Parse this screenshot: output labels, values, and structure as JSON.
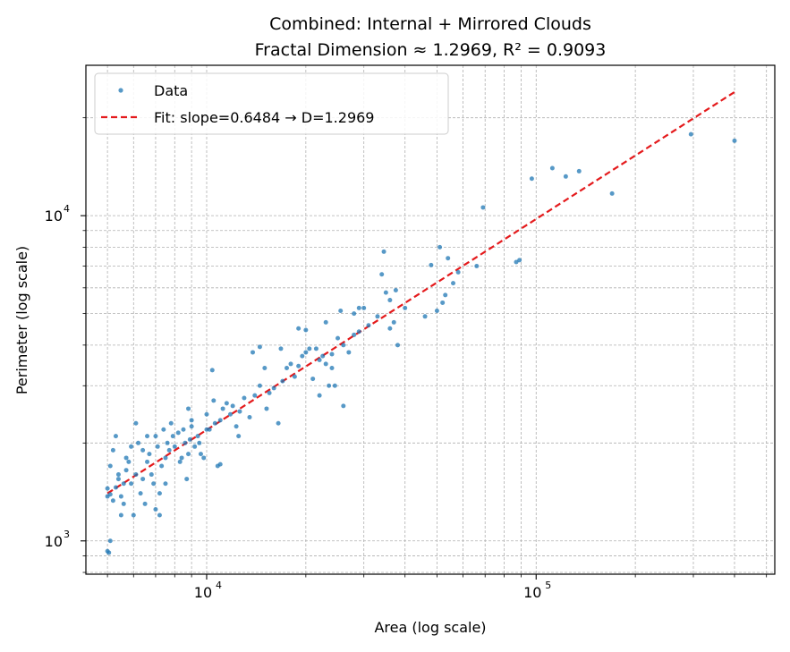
{
  "chart_data": {
    "type": "scatter",
    "title_line1": "Combined: Internal + Mirrored Clouds",
    "title_line2": "Fractal Dimension ≈ 1.2969, R² = 0.9093",
    "xlabel": "Area (log scale)",
    "ylabel": "Perimeter (log scale)",
    "xscale": "log",
    "yscale": "log",
    "xlim": [
      4300,
      530000
    ],
    "ylim": [
      790,
      29000
    ],
    "grid": "both (major and minor), dashed",
    "legend_position": "top-left",
    "x_ticks": [
      {
        "value": 10000,
        "label": "10",
        "exp": "4"
      },
      {
        "value": 100000,
        "label": "10",
        "exp": "5"
      }
    ],
    "y_ticks": [
      {
        "value": 1000,
        "label": "10",
        "exp": "3"
      },
      {
        "value": 10000,
        "label": "10",
        "exp": "4"
      }
    ],
    "series": [
      {
        "name": "Data",
        "kind": "scatter",
        "color": "#1f77b4",
        "points": [
          [
            5000,
            930
          ],
          [
            5050,
            920
          ],
          [
            5100,
            1000
          ],
          [
            5000,
            1370
          ],
          [
            5100,
            1390
          ],
          [
            5200,
            1330
          ],
          [
            5300,
            1460
          ],
          [
            5400,
            1550
          ],
          [
            5500,
            1370
          ],
          [
            5600,
            1300
          ],
          [
            5000,
            1450
          ],
          [
            5100,
            1700
          ],
          [
            5200,
            1900
          ],
          [
            5300,
            2100
          ],
          [
            5400,
            1600
          ],
          [
            5600,
            1500
          ],
          [
            5700,
            1650
          ],
          [
            5800,
            1750
          ],
          [
            5900,
            1500
          ],
          [
            6000,
            1200
          ],
          [
            5500,
            1200
          ],
          [
            5700,
            1800
          ],
          [
            5900,
            1950
          ],
          [
            6100,
            1600
          ],
          [
            6200,
            2000
          ],
          [
            6300,
            1400
          ],
          [
            6400,
            1900
          ],
          [
            6500,
            1300
          ],
          [
            6600,
            1750
          ],
          [
            6700,
            1850
          ],
          [
            6800,
            1600
          ],
          [
            6900,
            1500
          ],
          [
            7000,
            2100
          ],
          [
            7100,
            1950
          ],
          [
            7200,
            1400
          ],
          [
            7300,
            1700
          ],
          [
            7400,
            2200
          ],
          [
            7500,
            1800
          ],
          [
            7600,
            2000
          ],
          [
            7700,
            1900
          ],
          [
            6100,
            2300
          ],
          [
            6400,
            1550
          ],
          [
            6600,
            2100
          ],
          [
            7000,
            1250
          ],
          [
            7200,
            1200
          ],
          [
            7500,
            1500
          ],
          [
            7800,
            2300
          ],
          [
            7900,
            2100
          ],
          [
            8000,
            1950
          ],
          [
            8200,
            2150
          ],
          [
            8400,
            1800
          ],
          [
            8500,
            2200
          ],
          [
            8600,
            2000
          ],
          [
            8700,
            1550
          ],
          [
            8800,
            1850
          ],
          [
            8900,
            2050
          ],
          [
            9000,
            2250
          ],
          [
            9200,
            1950
          ],
          [
            9400,
            2100
          ],
          [
            9600,
            1850
          ],
          [
            8300,
            1750
          ],
          [
            8800,
            2550
          ],
          [
            9000,
            2350
          ],
          [
            9500,
            2000
          ],
          [
            9800,
            1800
          ],
          [
            10000,
            2450
          ],
          [
            10200,
            2200
          ],
          [
            10400,
            3350
          ],
          [
            10600,
            2300
          ],
          [
            10800,
            1700
          ],
          [
            10000,
            2200
          ],
          [
            10500,
            2700
          ],
          [
            11000,
            2350
          ],
          [
            11200,
            2550
          ],
          [
            11500,
            2650
          ],
          [
            11800,
            2450
          ],
          [
            12000,
            2600
          ],
          [
            12300,
            2250
          ],
          [
            12600,
            2500
          ],
          [
            13000,
            2750
          ],
          [
            11000,
            1720
          ],
          [
            12500,
            2100
          ],
          [
            13500,
            2400
          ],
          [
            14000,
            2800
          ],
          [
            14500,
            3000
          ],
          [
            15000,
            3400
          ],
          [
            15500,
            2850
          ],
          [
            16000,
            2950
          ],
          [
            16500,
            2300
          ],
          [
            17000,
            3100
          ],
          [
            13800,
            3800
          ],
          [
            14500,
            3950
          ],
          [
            15200,
            2550
          ],
          [
            16800,
            3900
          ],
          [
            17500,
            3400
          ],
          [
            18000,
            3500
          ],
          [
            18500,
            3200
          ],
          [
            19000,
            3450
          ],
          [
            19500,
            3700
          ],
          [
            20000,
            3800
          ],
          [
            19000,
            4500
          ],
          [
            20000,
            4450
          ],
          [
            20500,
            3900
          ],
          [
            21000,
            3150
          ],
          [
            21500,
            3900
          ],
          [
            22000,
            3600
          ],
          [
            22500,
            3700
          ],
          [
            23000,
            3500
          ],
          [
            23500,
            3000
          ],
          [
            24000,
            3750
          ],
          [
            22000,
            2800
          ],
          [
            23000,
            4700
          ],
          [
            24000,
            3400
          ],
          [
            24500,
            3000
          ],
          [
            25000,
            4200
          ],
          [
            26000,
            4000
          ],
          [
            27000,
            3800
          ],
          [
            28000,
            4300
          ],
          [
            29000,
            4400
          ],
          [
            30000,
            5200
          ],
          [
            25500,
            5100
          ],
          [
            26000,
            2600
          ],
          [
            28000,
            5000
          ],
          [
            29000,
            5200
          ],
          [
            31000,
            4600
          ],
          [
            33000,
            4900
          ],
          [
            34000,
            6600
          ],
          [
            34500,
            7750
          ],
          [
            35000,
            5800
          ],
          [
            36000,
            5500
          ],
          [
            36000,
            4500
          ],
          [
            37000,
            4700
          ],
          [
            37500,
            5900
          ],
          [
            38000,
            4000
          ],
          [
            40000,
            5200
          ],
          [
            46000,
            4900
          ],
          [
            48000,
            7050
          ],
          [
            50000,
            5100
          ],
          [
            51000,
            8000
          ],
          [
            52000,
            5400
          ],
          [
            53000,
            5700
          ],
          [
            54000,
            7400
          ],
          [
            56000,
            6200
          ],
          [
            58000,
            6700
          ],
          [
            66000,
            7000
          ],
          [
            69000,
            10600
          ],
          [
            87000,
            7200
          ],
          [
            89000,
            7300
          ],
          [
            97000,
            13000
          ],
          [
            112000,
            14000
          ],
          [
            123000,
            13200
          ],
          [
            135000,
            13700
          ],
          [
            170000,
            11700
          ],
          [
            295000,
            17800
          ],
          [
            400000,
            17000
          ]
        ]
      },
      {
        "name": "Fit: slope=0.6484 → D=1.2969",
        "kind": "line",
        "color": "#e41a1c",
        "slope": 0.6484,
        "x_range": [
          5000,
          400000
        ],
        "y_at_xmin": 1400
      }
    ]
  }
}
